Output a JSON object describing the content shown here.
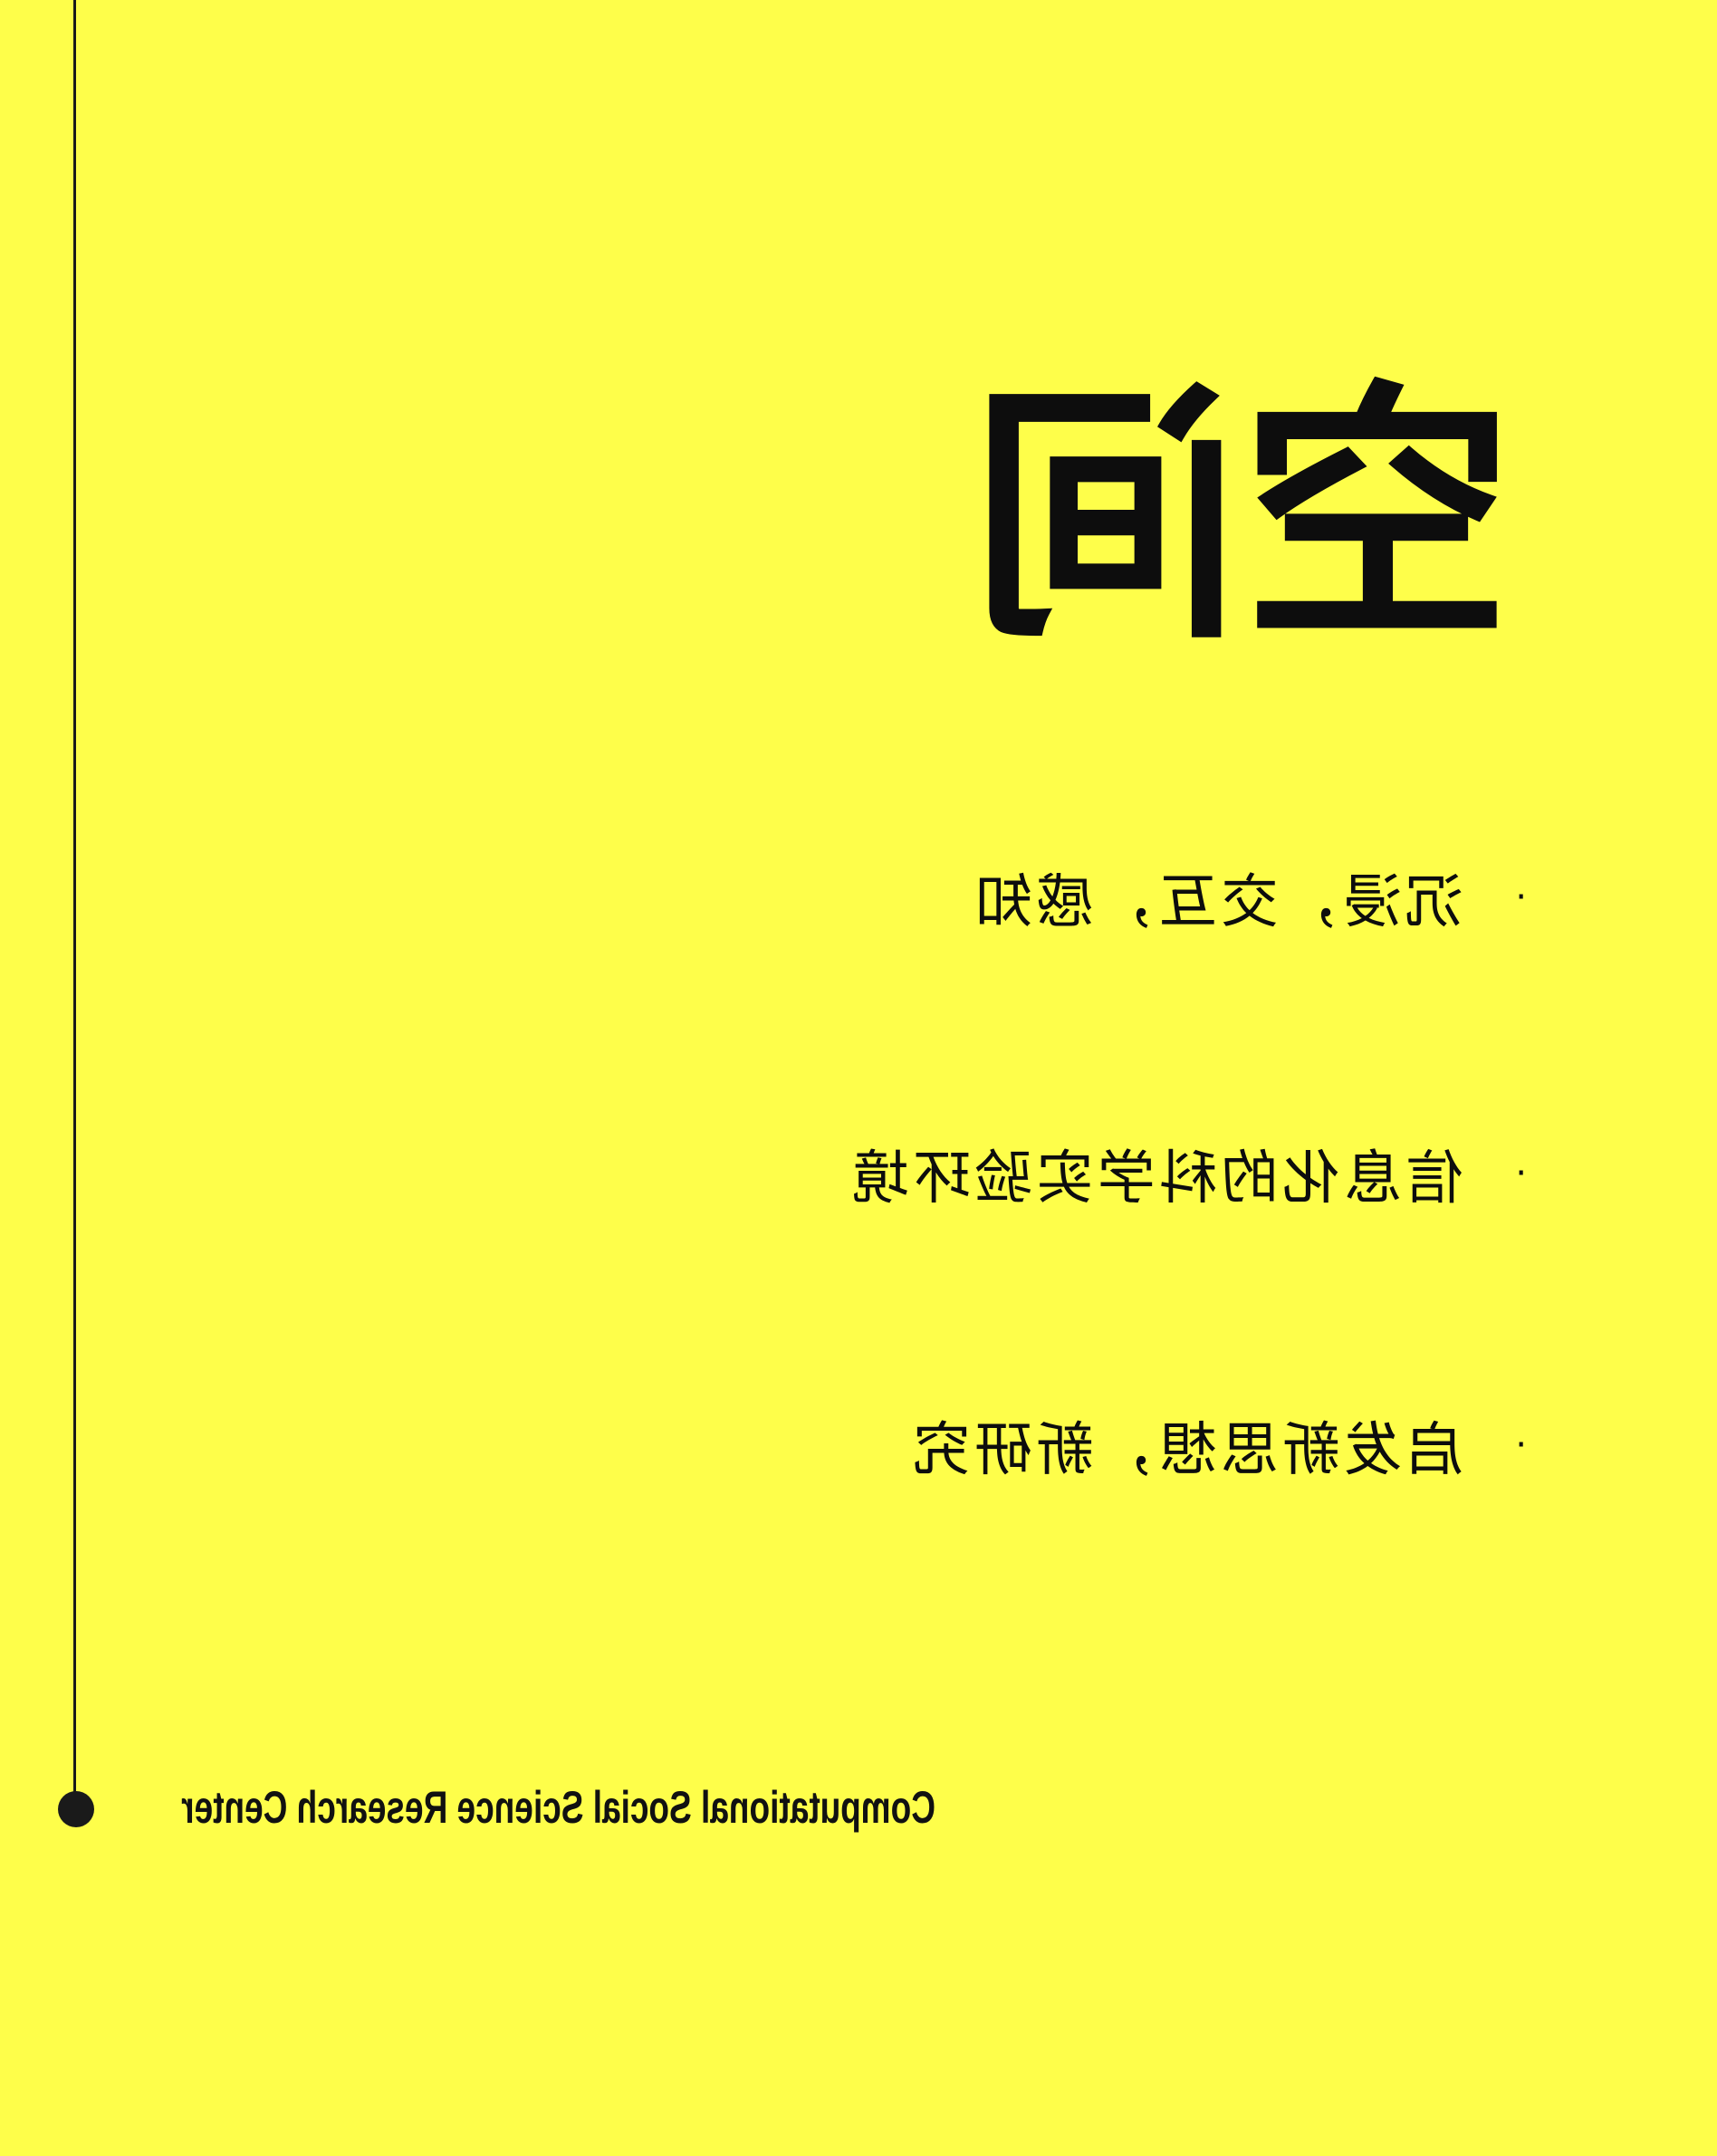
{
  "title": "空间",
  "bullets": [
    {
      "marker": "·",
      "text": "沉浸，交互，感知"
    },
    {
      "marker": "·",
      "text": "信息化的科学实验环境"
    },
    {
      "marker": "·",
      "text": "启发新思想，新研究"
    }
  ],
  "footer": {
    "org_name": "Computational Social Science Research Center"
  },
  "colors": {
    "background": "#fefe4a",
    "text": "#0d0d0d",
    "timeline": "#1a1a1a"
  }
}
